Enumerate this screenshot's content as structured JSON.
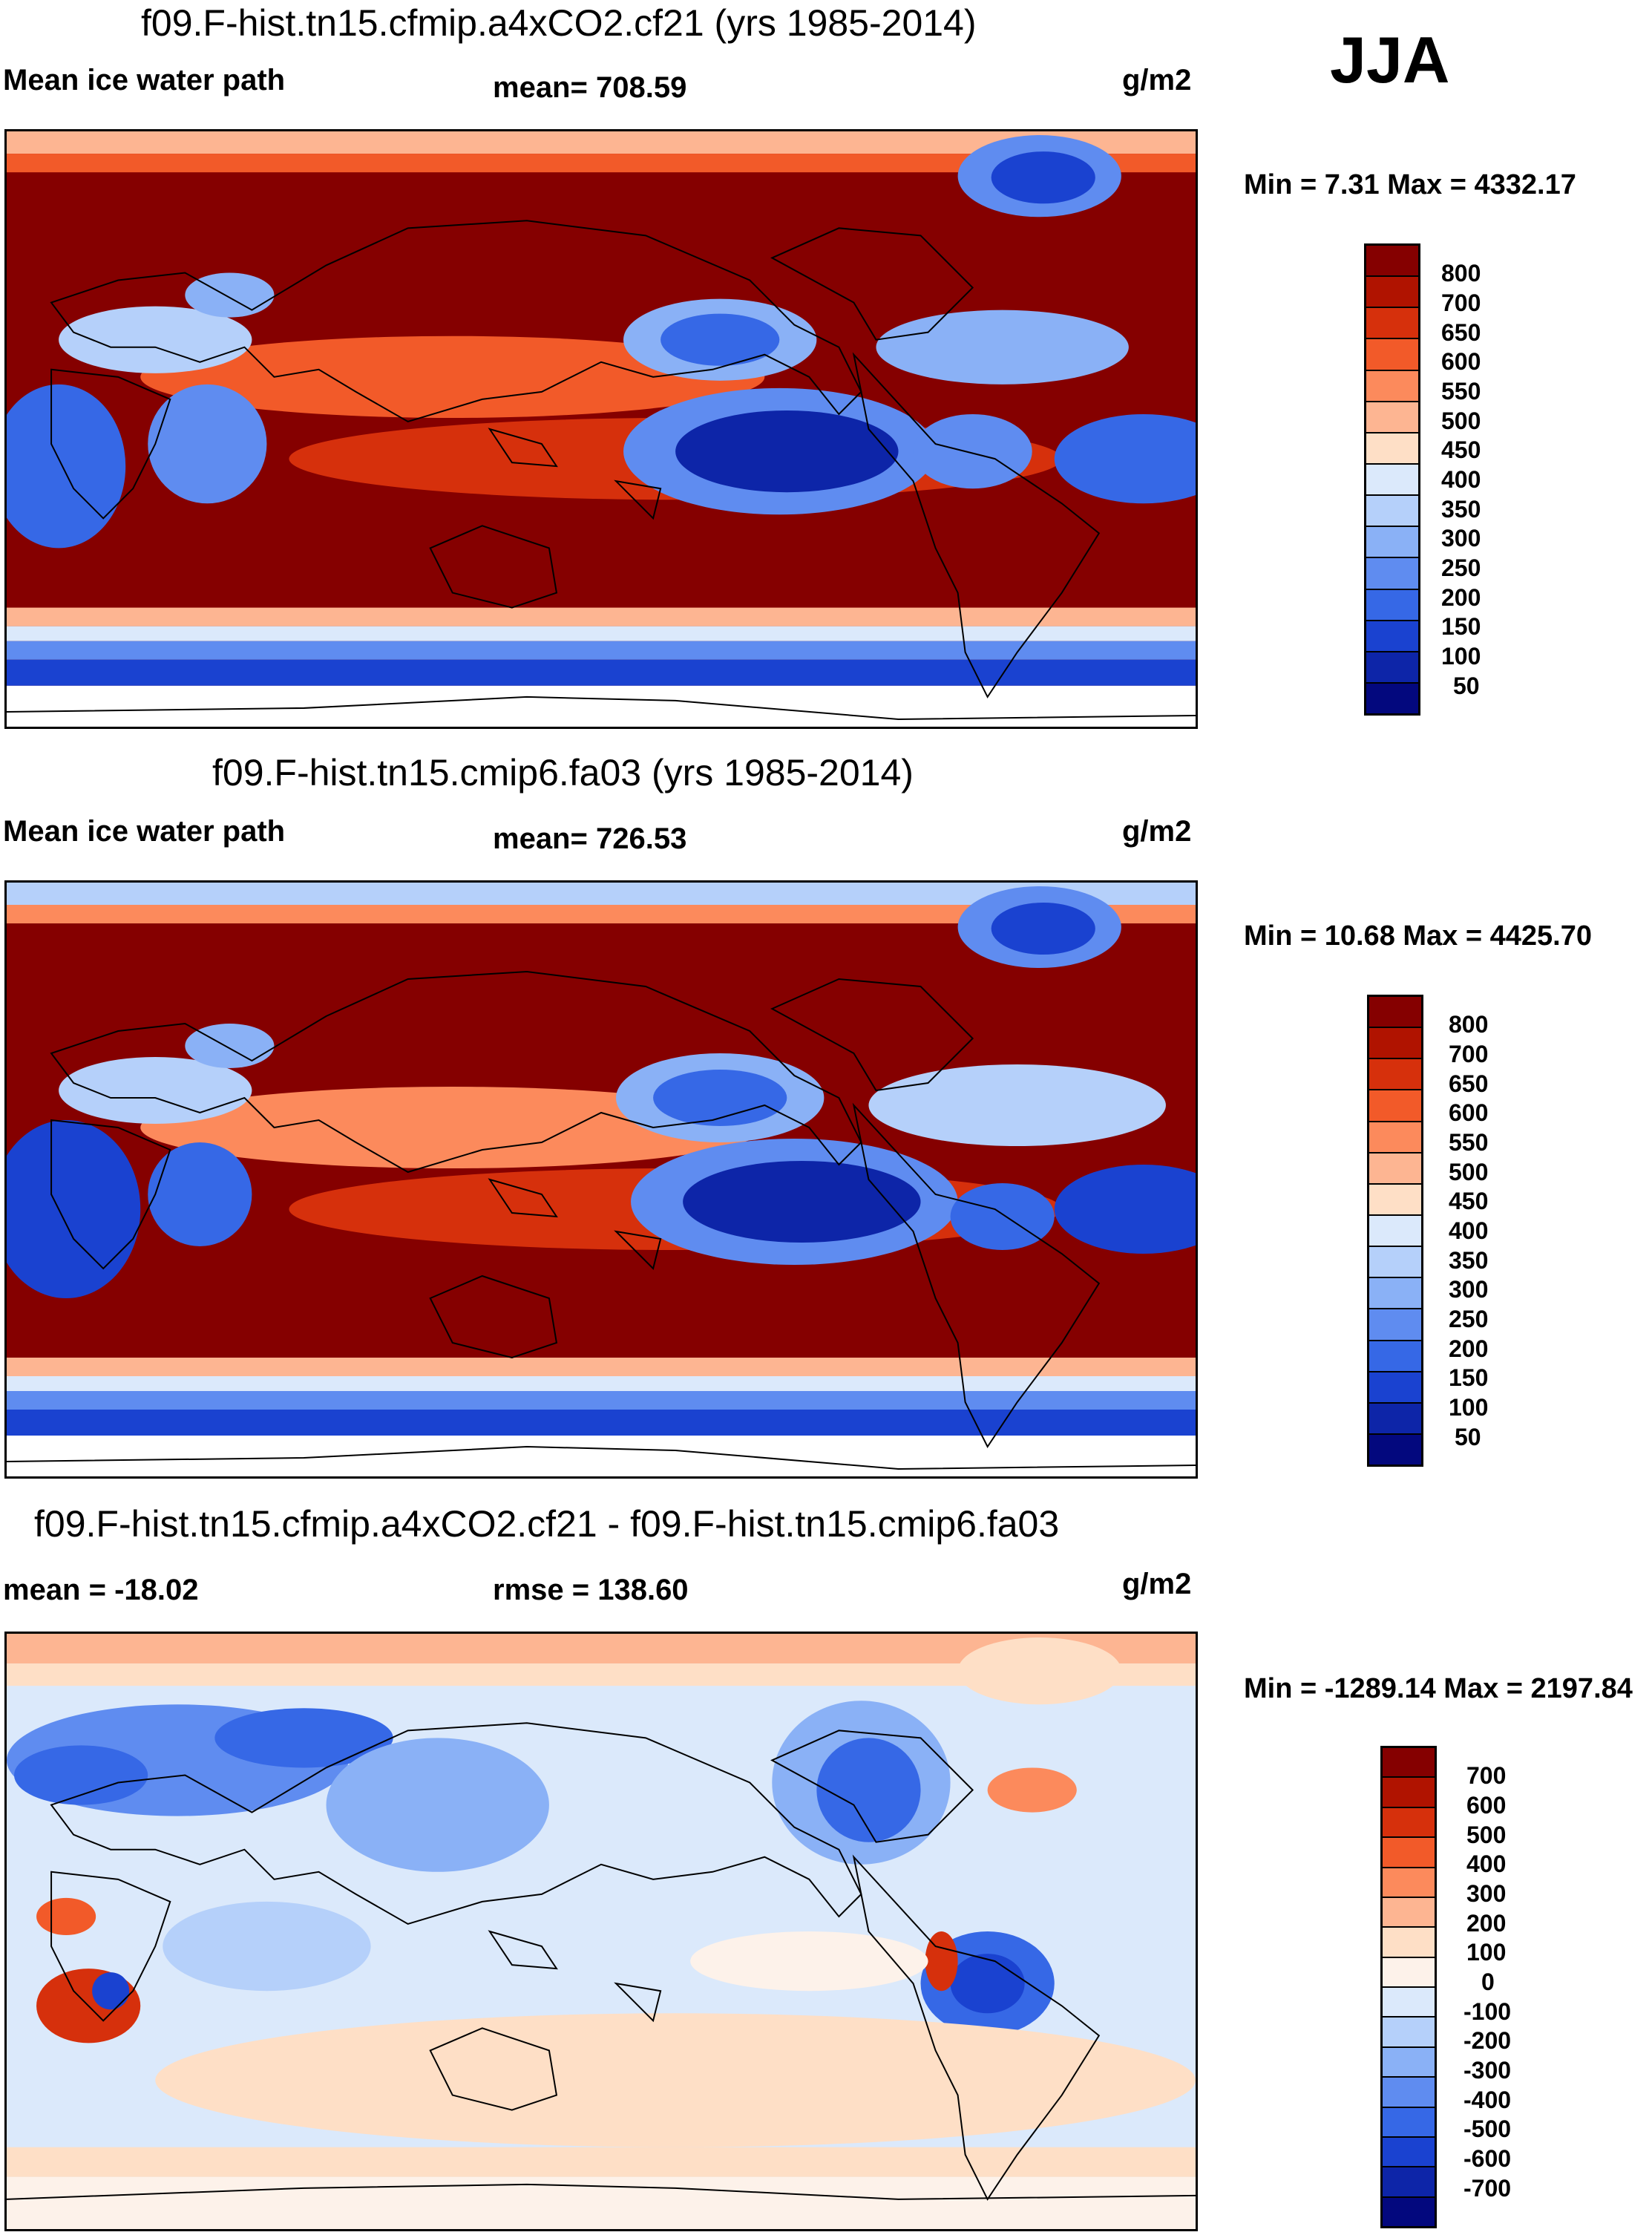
{
  "season": "JJA",
  "colors": {
    "abs_levels": [
      "#850000",
      "#b01300",
      "#d6300c",
      "#f25a29",
      "#fc8a5c",
      "#fdb592",
      "#fedfc6",
      "#dbe9fb",
      "#b5d0fa",
      "#8ab1f6",
      "#5f8cf0",
      "#3668e6",
      "#1a42d0",
      "#0d25a8",
      "#03087e"
    ],
    "diff_levels": [
      "#850000",
      "#b01300",
      "#d6300c",
      "#f25a29",
      "#fc8a5c",
      "#fdb592",
      "#fedfc6",
      "#fdf2ea",
      "#dbe9fb",
      "#b5d0fa",
      "#8ab1f6",
      "#5f8cf0",
      "#3668e6",
      "#1a42d0",
      "#0d25a8",
      "#03087e"
    ]
  },
  "panels": [
    {
      "title": "f09.F-hist.tn15.cfmip.a4xCO2.cf21 (yrs 1985-2014)",
      "left_label": "Mean ice water path",
      "center_label": "mean= 708.59",
      "units": "g/m2",
      "minmax": "Min =   7.31 Max = 4332.17",
      "colorbar_labels": [
        "800",
        "700",
        "650",
        "600",
        "550",
        "500",
        "450",
        "400",
        "350",
        "300",
        "250",
        "200",
        "150",
        "100",
        "50"
      ]
    },
    {
      "title": "f09.F-hist.tn15.cmip6.fa03 (yrs 1985-2014)",
      "left_label": "Mean ice water path",
      "center_label": "mean= 726.53",
      "units": "g/m2",
      "minmax": "Min =  10.68 Max = 4425.70",
      "colorbar_labels": [
        "800",
        "700",
        "650",
        "600",
        "550",
        "500",
        "450",
        "400",
        "350",
        "300",
        "250",
        "200",
        "150",
        "100",
        "50"
      ]
    },
    {
      "title": "f09.F-hist.tn15.cfmip.a4xCO2.cf21 - f09.F-hist.tn15.cmip6.fa03",
      "left_label": "mean = -18.02",
      "center_label": "rmse = 138.60",
      "units": "g/m2",
      "minmax": "Min = -1289.14 Max = 2197.84",
      "colorbar_labels": [
        "700",
        "600",
        "500",
        "400",
        "300",
        "200",
        "100",
        "0",
        "-100",
        "-200",
        "-300",
        "-400",
        "-500",
        "-600",
        "-700"
      ]
    }
  ]
}
